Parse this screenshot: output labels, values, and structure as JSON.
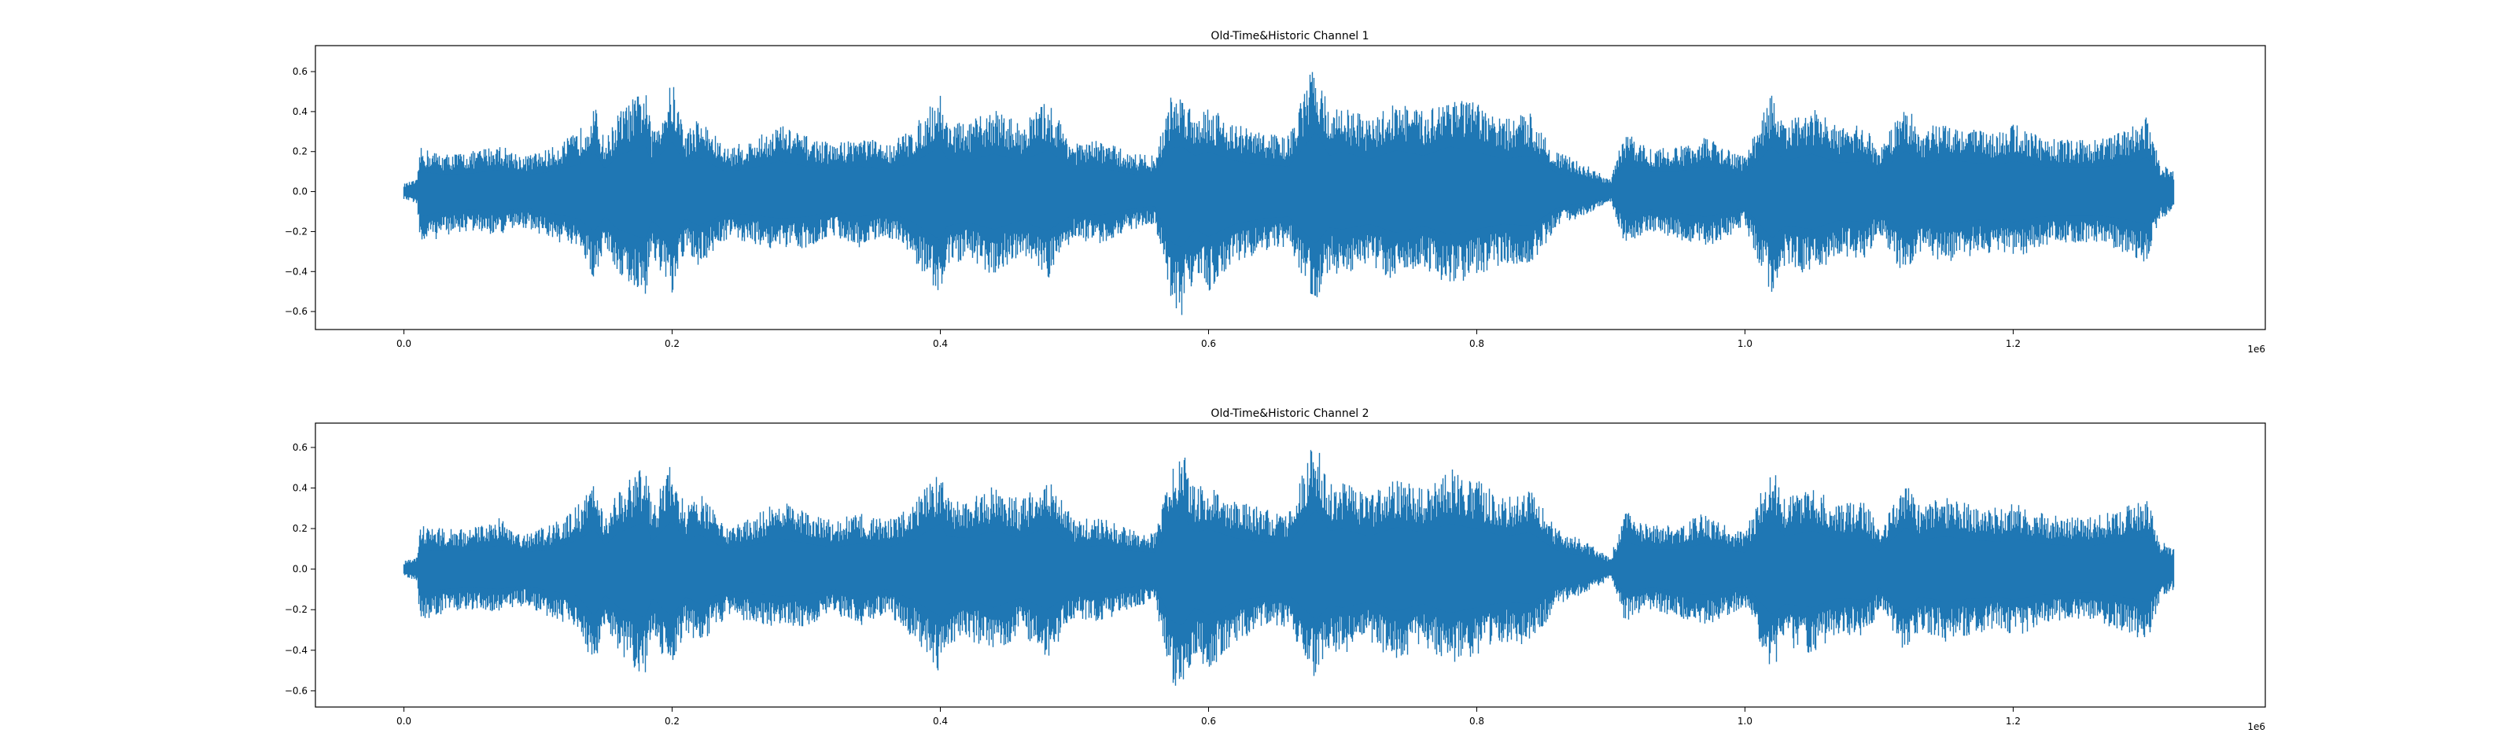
{
  "colors": {
    "series": "#1f77b4",
    "axes": "#000000",
    "background": "#ffffff"
  },
  "chart_data": [
    {
      "type": "line",
      "title": "Old-Time&Historic Channel 1",
      "xlabel": "",
      "ylabel": "",
      "x_offset_label": "1e6",
      "xlim": [
        -0.066,
        1.388
      ],
      "ylim": [
        -0.69,
        0.73
      ],
      "x_tick_values": [
        0.0,
        0.2,
        0.4,
        0.6,
        0.8,
        1.0,
        1.2
      ],
      "x_tick_labels": [
        "0.0",
        "0.2",
        "0.4",
        "0.6",
        "0.8",
        "1.0",
        "1.2"
      ],
      "y_tick_values": [
        -0.6,
        -0.4,
        -0.2,
        0.0,
        0.2,
        0.4,
        0.6
      ],
      "y_tick_labels": [
        "−0.6",
        "−0.4",
        "−0.2",
        "0.0",
        "0.2",
        "0.4",
        "0.6"
      ],
      "grid": false,
      "legend": "none",
      "envelope": {
        "x": [
          0.0,
          0.01,
          0.012,
          0.03,
          0.05,
          0.07,
          0.09,
          0.11,
          0.13,
          0.142,
          0.15,
          0.16,
          0.18,
          0.185,
          0.2,
          0.21,
          0.22,
          0.24,
          0.26,
          0.28,
          0.3,
          0.32,
          0.34,
          0.36,
          0.38,
          0.4,
          0.405,
          0.42,
          0.44,
          0.46,
          0.48,
          0.5,
          0.52,
          0.54,
          0.56,
          0.572,
          0.58,
          0.59,
          0.6,
          0.62,
          0.64,
          0.66,
          0.68,
          0.69,
          0.7,
          0.72,
          0.74,
          0.76,
          0.78,
          0.8,
          0.82,
          0.84,
          0.86,
          0.88,
          0.9,
          0.91,
          0.93,
          0.95,
          0.97,
          0.99,
          1.0,
          1.02,
          1.03,
          1.05,
          1.07,
          1.09,
          1.1,
          1.12,
          1.13,
          1.15,
          1.17,
          1.19,
          1.2,
          1.22,
          1.24,
          1.26,
          1.28,
          1.3,
          1.31,
          1.32
        ],
        "upper": [
          0.04,
          0.06,
          0.22,
          0.19,
          0.2,
          0.24,
          0.18,
          0.22,
          0.3,
          0.44,
          0.25,
          0.4,
          0.52,
          0.3,
          0.56,
          0.3,
          0.38,
          0.22,
          0.26,
          0.34,
          0.28,
          0.24,
          0.28,
          0.24,
          0.32,
          0.5,
          0.36,
          0.34,
          0.42,
          0.34,
          0.46,
          0.24,
          0.26,
          0.2,
          0.18,
          0.48,
          0.5,
          0.4,
          0.44,
          0.34,
          0.3,
          0.28,
          0.67,
          0.4,
          0.44,
          0.36,
          0.46,
          0.4,
          0.5,
          0.44,
          0.36,
          0.4,
          0.2,
          0.14,
          0.06,
          0.3,
          0.22,
          0.22,
          0.28,
          0.2,
          0.18,
          0.5,
          0.34,
          0.42,
          0.32,
          0.34,
          0.2,
          0.46,
          0.3,
          0.36,
          0.32,
          0.3,
          0.34,
          0.28,
          0.26,
          0.26,
          0.3,
          0.38,
          0.14,
          0.1
        ],
        "lower": [
          -0.04,
          -0.06,
          -0.28,
          -0.22,
          -0.2,
          -0.22,
          -0.18,
          -0.24,
          -0.3,
          -0.44,
          -0.28,
          -0.42,
          -0.53,
          -0.32,
          -0.54,
          -0.3,
          -0.38,
          -0.24,
          -0.26,
          -0.3,
          -0.28,
          -0.22,
          -0.28,
          -0.22,
          -0.34,
          -0.54,
          -0.38,
          -0.34,
          -0.42,
          -0.32,
          -0.44,
          -0.24,
          -0.26,
          -0.2,
          -0.16,
          -0.56,
          -0.62,
          -0.42,
          -0.5,
          -0.36,
          -0.3,
          -0.28,
          -0.58,
          -0.4,
          -0.42,
          -0.36,
          -0.46,
          -0.38,
          -0.48,
          -0.42,
          -0.36,
          -0.38,
          -0.18,
          -0.12,
          -0.05,
          -0.26,
          -0.2,
          -0.24,
          -0.28,
          -0.22,
          -0.18,
          -0.52,
          -0.38,
          -0.42,
          -0.32,
          -0.34,
          -0.2,
          -0.46,
          -0.3,
          -0.36,
          -0.32,
          -0.3,
          -0.34,
          -0.28,
          -0.26,
          -0.26,
          -0.3,
          -0.36,
          -0.14,
          -0.1
        ]
      }
    },
    {
      "type": "line",
      "title": "Old-Time&Historic Channel 2",
      "xlabel": "",
      "ylabel": "",
      "x_offset_label": "1e6",
      "xlim": [
        -0.066,
        1.388
      ],
      "ylim": [
        -0.68,
        0.72
      ],
      "x_tick_values": [
        0.0,
        0.2,
        0.4,
        0.6,
        0.8,
        1.0,
        1.2
      ],
      "x_tick_labels": [
        "0.0",
        "0.2",
        "0.4",
        "0.6",
        "0.8",
        "1.0",
        "1.2"
      ],
      "y_tick_values": [
        -0.6,
        -0.4,
        -0.2,
        0.0,
        0.2,
        0.4,
        0.6
      ],
      "y_tick_labels": [
        "−0.6",
        "−0.4",
        "−0.2",
        "0.0",
        "0.2",
        "0.4",
        "0.6"
      ],
      "grid": false,
      "legend": "none",
      "envelope": {
        "x": [
          0.0,
          0.01,
          0.012,
          0.03,
          0.05,
          0.07,
          0.09,
          0.11,
          0.13,
          0.142,
          0.15,
          0.16,
          0.18,
          0.185,
          0.2,
          0.21,
          0.22,
          0.24,
          0.26,
          0.28,
          0.3,
          0.32,
          0.34,
          0.36,
          0.38,
          0.4,
          0.405,
          0.42,
          0.44,
          0.46,
          0.48,
          0.5,
          0.52,
          0.54,
          0.56,
          0.572,
          0.58,
          0.59,
          0.6,
          0.62,
          0.64,
          0.66,
          0.68,
          0.69,
          0.7,
          0.72,
          0.74,
          0.76,
          0.78,
          0.8,
          0.82,
          0.84,
          0.86,
          0.88,
          0.9,
          0.91,
          0.93,
          0.95,
          0.97,
          0.99,
          1.0,
          1.02,
          1.03,
          1.05,
          1.07,
          1.09,
          1.1,
          1.12,
          1.13,
          1.15,
          1.17,
          1.19,
          1.2,
          1.22,
          1.24,
          1.26,
          1.28,
          1.3,
          1.31,
          1.32
        ],
        "upper": [
          0.04,
          0.06,
          0.22,
          0.2,
          0.2,
          0.26,
          0.18,
          0.22,
          0.32,
          0.44,
          0.26,
          0.4,
          0.52,
          0.3,
          0.54,
          0.3,
          0.38,
          0.22,
          0.26,
          0.34,
          0.28,
          0.24,
          0.28,
          0.24,
          0.32,
          0.5,
          0.36,
          0.34,
          0.42,
          0.34,
          0.46,
          0.24,
          0.26,
          0.2,
          0.18,
          0.48,
          0.6,
          0.4,
          0.44,
          0.34,
          0.3,
          0.28,
          0.66,
          0.42,
          0.44,
          0.36,
          0.46,
          0.4,
          0.5,
          0.44,
          0.36,
          0.4,
          0.2,
          0.14,
          0.06,
          0.3,
          0.22,
          0.22,
          0.28,
          0.2,
          0.18,
          0.52,
          0.36,
          0.42,
          0.32,
          0.34,
          0.2,
          0.46,
          0.32,
          0.36,
          0.32,
          0.3,
          0.34,
          0.28,
          0.26,
          0.26,
          0.3,
          0.36,
          0.14,
          0.1
        ],
        "lower": [
          -0.04,
          -0.06,
          -0.26,
          -0.22,
          -0.2,
          -0.22,
          -0.18,
          -0.24,
          -0.3,
          -0.52,
          -0.28,
          -0.42,
          -0.53,
          -0.32,
          -0.52,
          -0.3,
          -0.38,
          -0.24,
          -0.26,
          -0.3,
          -0.28,
          -0.22,
          -0.28,
          -0.22,
          -0.34,
          -0.52,
          -0.38,
          -0.34,
          -0.42,
          -0.32,
          -0.44,
          -0.24,
          -0.26,
          -0.2,
          -0.16,
          -0.56,
          -0.62,
          -0.42,
          -0.5,
          -0.36,
          -0.3,
          -0.28,
          -0.56,
          -0.4,
          -0.42,
          -0.36,
          -0.46,
          -0.38,
          -0.48,
          -0.42,
          -0.36,
          -0.38,
          -0.18,
          -0.12,
          -0.05,
          -0.26,
          -0.2,
          -0.24,
          -0.28,
          -0.22,
          -0.18,
          -0.5,
          -0.38,
          -0.42,
          -0.32,
          -0.34,
          -0.2,
          -0.46,
          -0.3,
          -0.36,
          -0.32,
          -0.3,
          -0.34,
          -0.28,
          -0.26,
          -0.26,
          -0.3,
          -0.36,
          -0.14,
          -0.1
        ]
      }
    }
  ]
}
